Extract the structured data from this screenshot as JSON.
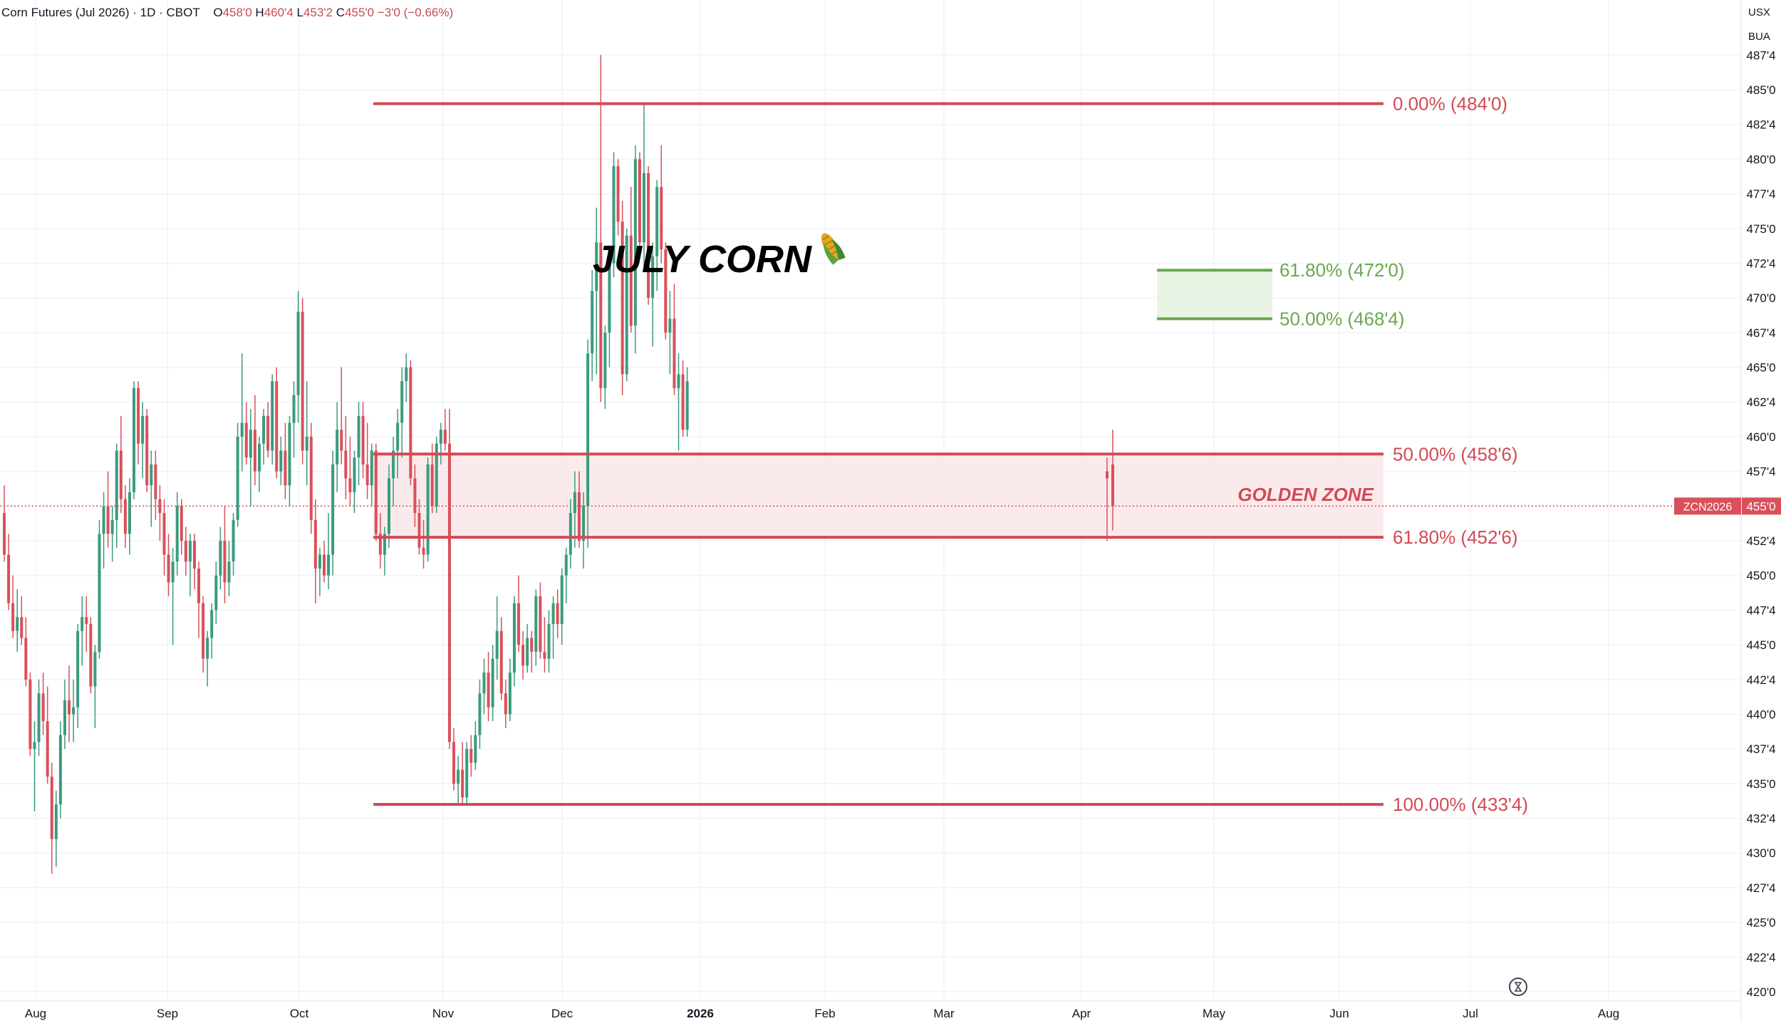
{
  "header": {
    "symbol": "Corn Futures (Jul 2026)",
    "interval": "1D",
    "exchange": "CBOT",
    "open_label": "O",
    "open": "458'0",
    "high_label": "H",
    "high": "460'4",
    "low_label": "L",
    "low": "453'2",
    "close_label": "C",
    "close": "455'0",
    "change": "−3'0 (−0.66%)"
  },
  "units": {
    "currency": "USX",
    "unit": "BUA"
  },
  "colors": {
    "up": "#3a9b7e",
    "down": "#d9505a",
    "fib": "#d24a55",
    "fib_green": "#6aa84f",
    "zone_fill": "#f9e3e5",
    "green_zone_fill": "#e8f3e2"
  },
  "chart_data": {
    "type": "candlestick",
    "title": "JULY CORN",
    "title_icon": "corn-icon",
    "symbol_tag": "ZCN2026",
    "last_price": "455'0",
    "last_price_value": 455.0,
    "ylim": [
      419.5,
      488.5
    ],
    "y_ticks": [
      "420'0",
      "422'4",
      "425'0",
      "427'4",
      "430'0",
      "432'4",
      "435'0",
      "437'4",
      "440'0",
      "442'4",
      "445'0",
      "447'4",
      "450'0",
      "452'4",
      "455'0",
      "457'4",
      "460'0",
      "462'4",
      "465'0",
      "467'4",
      "470'0",
      "472'4",
      "475'0",
      "477'4",
      "480'0",
      "482'4",
      "485'0",
      "487'4"
    ],
    "x_ticks": [
      "Aug",
      "Sep",
      "Oct",
      "Nov",
      "Dec",
      "2026",
      "Feb",
      "Mar",
      "Apr",
      "May",
      "Jun",
      "Jul",
      "Aug"
    ],
    "grid": true,
    "fib_levels": [
      {
        "label": "0.00% (484'0)",
        "value": 484.0
      },
      {
        "label": "50.00% (458'6)",
        "value": 458.75
      },
      {
        "label": "61.80% (452'6)",
        "value": 452.75
      },
      {
        "label": "100.00% (433'4)",
        "value": 433.5
      }
    ],
    "golden_zone": {
      "label": "GOLDEN ZONE",
      "top": 458.75,
      "bottom": 452.75
    },
    "target_zone": [
      {
        "label": "61.80% (472'0)",
        "value": 472.0
      },
      {
        "label": "50.00% (468'4)",
        "value": 468.5
      }
    ],
    "candles": [
      {
        "o": 454.5,
        "h": 456.5,
        "l": 451.0,
        "c": 451.5
      },
      {
        "o": 451.5,
        "h": 453.0,
        "l": 447.5,
        "c": 448.0
      },
      {
        "o": 448.0,
        "h": 450.0,
        "l": 445.5,
        "c": 446.0
      },
      {
        "o": 446.0,
        "h": 449.0,
        "l": 444.5,
        "c": 447.0
      },
      {
        "o": 447.0,
        "h": 448.5,
        "l": 445.0,
        "c": 445.5
      },
      {
        "o": 445.5,
        "h": 447.0,
        "l": 442.0,
        "c": 442.5
      },
      {
        "o": 442.5,
        "h": 443.0,
        "l": 437.0,
        "c": 437.5
      },
      {
        "o": 437.5,
        "h": 439.5,
        "l": 433.0,
        "c": 438.0
      },
      {
        "o": 438.0,
        "h": 442.5,
        "l": 437.0,
        "c": 441.5
      },
      {
        "o": 441.5,
        "h": 443.0,
        "l": 438.5,
        "c": 439.5
      },
      {
        "o": 439.5,
        "h": 442.0,
        "l": 435.0,
        "c": 435.5
      },
      {
        "o": 435.5,
        "h": 436.5,
        "l": 428.5,
        "c": 431.0
      },
      {
        "o": 431.0,
        "h": 434.5,
        "l": 429.0,
        "c": 433.5
      },
      {
        "o": 433.5,
        "h": 439.5,
        "l": 432.5,
        "c": 438.5
      },
      {
        "o": 438.5,
        "h": 442.5,
        "l": 437.5,
        "c": 441.0
      },
      {
        "o": 441.0,
        "h": 443.5,
        "l": 438.0,
        "c": 440.0
      },
      {
        "o": 440.0,
        "h": 442.5,
        "l": 438.0,
        "c": 440.5
      },
      {
        "o": 440.5,
        "h": 446.5,
        "l": 439.0,
        "c": 446.0
      },
      {
        "o": 446.0,
        "h": 448.5,
        "l": 443.5,
        "c": 447.0
      },
      {
        "o": 447.0,
        "h": 448.5,
        "l": 444.5,
        "c": 446.5
      },
      {
        "o": 446.5,
        "h": 447.0,
        "l": 441.5,
        "c": 442.0
      },
      {
        "o": 442.0,
        "h": 445.0,
        "l": 439.0,
        "c": 444.5
      },
      {
        "o": 444.5,
        "h": 454.0,
        "l": 444.0,
        "c": 453.0
      },
      {
        "o": 453.0,
        "h": 456.0,
        "l": 450.5,
        "c": 455.0
      },
      {
        "o": 455.0,
        "h": 457.5,
        "l": 452.0,
        "c": 453.0
      },
      {
        "o": 453.0,
        "h": 455.0,
        "l": 451.0,
        "c": 454.0
      },
      {
        "o": 454.0,
        "h": 459.5,
        "l": 452.0,
        "c": 459.0
      },
      {
        "o": 459.0,
        "h": 461.5,
        "l": 454.5,
        "c": 455.5
      },
      {
        "o": 455.5,
        "h": 456.5,
        "l": 452.0,
        "c": 453.0
      },
      {
        "o": 453.0,
        "h": 457.0,
        "l": 451.5,
        "c": 456.0
      },
      {
        "o": 456.0,
        "h": 464.0,
        "l": 455.5,
        "c": 463.5
      },
      {
        "o": 463.5,
        "h": 464.0,
        "l": 458.0,
        "c": 459.5
      },
      {
        "o": 459.5,
        "h": 462.5,
        "l": 457.0,
        "c": 461.5
      },
      {
        "o": 461.5,
        "h": 462.0,
        "l": 456.0,
        "c": 456.5
      },
      {
        "o": 456.5,
        "h": 459.0,
        "l": 453.5,
        "c": 458.0
      },
      {
        "o": 458.0,
        "h": 459.0,
        "l": 454.0,
        "c": 455.5
      },
      {
        "o": 455.5,
        "h": 456.5,
        "l": 452.5,
        "c": 454.5
      },
      {
        "o": 454.5,
        "h": 455.5,
        "l": 450.0,
        "c": 451.5
      },
      {
        "o": 451.5,
        "h": 453.0,
        "l": 448.5,
        "c": 449.5
      },
      {
        "o": 449.5,
        "h": 452.0,
        "l": 445.0,
        "c": 451.0
      },
      {
        "o": 451.0,
        "h": 456.0,
        "l": 450.0,
        "c": 455.0
      },
      {
        "o": 455.0,
        "h": 455.5,
        "l": 451.5,
        "c": 452.5
      },
      {
        "o": 452.5,
        "h": 453.5,
        "l": 450.0,
        "c": 451.0
      },
      {
        "o": 451.0,
        "h": 453.0,
        "l": 448.5,
        "c": 452.5
      },
      {
        "o": 452.5,
        "h": 453.0,
        "l": 449.0,
        "c": 450.5
      },
      {
        "o": 450.5,
        "h": 451.0,
        "l": 445.5,
        "c": 448.0
      },
      {
        "o": 448.0,
        "h": 448.5,
        "l": 443.0,
        "c": 444.0
      },
      {
        "o": 444.0,
        "h": 446.0,
        "l": 442.0,
        "c": 445.5
      },
      {
        "o": 445.5,
        "h": 448.0,
        "l": 444.0,
        "c": 447.5
      },
      {
        "o": 447.5,
        "h": 451.0,
        "l": 446.5,
        "c": 450.0
      },
      {
        "o": 450.0,
        "h": 453.5,
        "l": 449.0,
        "c": 452.5
      },
      {
        "o": 452.5,
        "h": 455.0,
        "l": 448.0,
        "c": 449.5
      },
      {
        "o": 449.5,
        "h": 452.5,
        "l": 448.5,
        "c": 451.0
      },
      {
        "o": 451.0,
        "h": 454.5,
        "l": 450.0,
        "c": 454.0
      },
      {
        "o": 454.0,
        "h": 461.0,
        "l": 453.5,
        "c": 460.0
      },
      {
        "o": 460.0,
        "h": 466.0,
        "l": 457.5,
        "c": 461.0
      },
      {
        "o": 461.0,
        "h": 462.5,
        "l": 458.0,
        "c": 458.5
      },
      {
        "o": 458.5,
        "h": 462.0,
        "l": 455.0,
        "c": 460.5
      },
      {
        "o": 460.5,
        "h": 463.0,
        "l": 456.5,
        "c": 457.5
      },
      {
        "o": 457.5,
        "h": 460.0,
        "l": 456.0,
        "c": 459.5
      },
      {
        "o": 459.5,
        "h": 462.0,
        "l": 458.0,
        "c": 461.5
      },
      {
        "o": 461.5,
        "h": 462.5,
        "l": 458.5,
        "c": 459.0
      },
      {
        "o": 459.0,
        "h": 464.5,
        "l": 458.0,
        "c": 464.0
      },
      {
        "o": 464.0,
        "h": 465.0,
        "l": 457.0,
        "c": 457.5
      },
      {
        "o": 457.5,
        "h": 460.0,
        "l": 456.5,
        "c": 459.0
      },
      {
        "o": 459.0,
        "h": 461.0,
        "l": 455.5,
        "c": 456.5
      },
      {
        "o": 456.5,
        "h": 461.5,
        "l": 455.0,
        "c": 461.0
      },
      {
        "o": 461.0,
        "h": 464.0,
        "l": 458.5,
        "c": 463.0
      },
      {
        "o": 463.0,
        "h": 470.5,
        "l": 461.0,
        "c": 469.0
      },
      {
        "o": 469.0,
        "h": 470.0,
        "l": 458.0,
        "c": 459.0
      },
      {
        "o": 459.0,
        "h": 464.0,
        "l": 456.5,
        "c": 460.0
      },
      {
        "o": 460.0,
        "h": 461.0,
        "l": 453.0,
        "c": 454.0
      },
      {
        "o": 454.0,
        "h": 455.5,
        "l": 448.0,
        "c": 450.5
      },
      {
        "o": 450.5,
        "h": 452.0,
        "l": 448.5,
        "c": 451.5
      },
      {
        "o": 451.5,
        "h": 452.5,
        "l": 449.5,
        "c": 450.0
      },
      {
        "o": 450.0,
        "h": 454.5,
        "l": 449.0,
        "c": 451.5
      },
      {
        "o": 451.5,
        "h": 459.0,
        "l": 450.0,
        "c": 458.0
      },
      {
        "o": 458.0,
        "h": 462.5,
        "l": 456.0,
        "c": 460.5
      },
      {
        "o": 460.5,
        "h": 465.0,
        "l": 458.0,
        "c": 459.0
      },
      {
        "o": 459.0,
        "h": 461.5,
        "l": 455.5,
        "c": 457.0
      },
      {
        "o": 457.0,
        "h": 460.0,
        "l": 455.0,
        "c": 456.0
      },
      {
        "o": 456.0,
        "h": 459.0,
        "l": 454.5,
        "c": 458.5
      },
      {
        "o": 458.5,
        "h": 462.5,
        "l": 456.5,
        "c": 461.5
      },
      {
        "o": 461.5,
        "h": 462.5,
        "l": 457.0,
        "c": 458.0
      },
      {
        "o": 458.0,
        "h": 461.0,
        "l": 455.5,
        "c": 456.5
      },
      {
        "o": 456.5,
        "h": 459.5,
        "l": 455.0,
        "c": 459.0
      },
      {
        "o": 459.0,
        "h": 459.5,
        "l": 452.5,
        "c": 453.0
      },
      {
        "o": 453.0,
        "h": 454.5,
        "l": 450.5,
        "c": 451.5
      },
      {
        "o": 451.5,
        "h": 453.5,
        "l": 450.0,
        "c": 453.0
      },
      {
        "o": 453.0,
        "h": 458.0,
        "l": 452.0,
        "c": 457.0
      },
      {
        "o": 457.0,
        "h": 460.0,
        "l": 455.0,
        "c": 459.0
      },
      {
        "o": 459.0,
        "h": 462.0,
        "l": 457.0,
        "c": 461.0
      },
      {
        "o": 461.0,
        "h": 465.0,
        "l": 458.5,
        "c": 464.0
      },
      {
        "o": 464.0,
        "h": 466.0,
        "l": 462.5,
        "c": 465.0
      },
      {
        "o": 465.0,
        "h": 465.5,
        "l": 456.5,
        "c": 457.0
      },
      {
        "o": 457.0,
        "h": 458.0,
        "l": 453.5,
        "c": 454.5
      },
      {
        "o": 454.5,
        "h": 455.5,
        "l": 451.5,
        "c": 452.0
      },
      {
        "o": 452.0,
        "h": 454.0,
        "l": 450.5,
        "c": 451.5
      },
      {
        "o": 451.5,
        "h": 458.5,
        "l": 451.0,
        "c": 458.0
      },
      {
        "o": 458.0,
        "h": 459.5,
        "l": 454.5,
        "c": 455.0
      },
      {
        "o": 455.0,
        "h": 460.0,
        "l": 454.5,
        "c": 459.5
      },
      {
        "o": 459.5,
        "h": 461.0,
        "l": 458.0,
        "c": 460.5
      },
      {
        "o": 460.5,
        "h": 462.0,
        "l": 459.0,
        "c": 459.5
      },
      {
        "o": 459.5,
        "h": 462.0,
        "l": 437.5,
        "c": 438.0
      },
      {
        "o": 438.0,
        "h": 439.0,
        "l": 434.5,
        "c": 435.0
      },
      {
        "o": 435.0,
        "h": 437.0,
        "l": 433.5,
        "c": 436.0
      },
      {
        "o": 436.0,
        "h": 438.0,
        "l": 433.5,
        "c": 434.0
      },
      {
        "o": 434.0,
        "h": 438.0,
        "l": 433.5,
        "c": 437.5
      },
      {
        "o": 437.5,
        "h": 438.5,
        "l": 435.5,
        "c": 436.5
      },
      {
        "o": 436.5,
        "h": 439.5,
        "l": 436.0,
        "c": 438.5
      },
      {
        "o": 438.5,
        "h": 442.5,
        "l": 437.5,
        "c": 441.5
      },
      {
        "o": 441.5,
        "h": 444.0,
        "l": 440.0,
        "c": 443.0
      },
      {
        "o": 443.0,
        "h": 444.5,
        "l": 439.5,
        "c": 440.5
      },
      {
        "o": 440.5,
        "h": 445.0,
        "l": 439.5,
        "c": 444.0
      },
      {
        "o": 444.0,
        "h": 448.5,
        "l": 442.5,
        "c": 446.0
      },
      {
        "o": 446.0,
        "h": 447.0,
        "l": 441.0,
        "c": 441.5
      },
      {
        "o": 441.5,
        "h": 442.5,
        "l": 439.0,
        "c": 440.0
      },
      {
        "o": 440.0,
        "h": 444.0,
        "l": 439.5,
        "c": 443.0
      },
      {
        "o": 443.0,
        "h": 448.5,
        "l": 442.0,
        "c": 448.0
      },
      {
        "o": 448.0,
        "h": 450.0,
        "l": 444.5,
        "c": 445.0
      },
      {
        "o": 445.0,
        "h": 446.0,
        "l": 442.5,
        "c": 443.5
      },
      {
        "o": 443.5,
        "h": 446.5,
        "l": 443.0,
        "c": 445.5
      },
      {
        "o": 445.5,
        "h": 446.0,
        "l": 443.0,
        "c": 444.5
      },
      {
        "o": 444.5,
        "h": 449.0,
        "l": 443.5,
        "c": 448.5
      },
      {
        "o": 448.5,
        "h": 449.5,
        "l": 444.0,
        "c": 444.5
      },
      {
        "o": 444.5,
        "h": 447.0,
        "l": 443.0,
        "c": 444.0
      },
      {
        "o": 444.0,
        "h": 447.5,
        "l": 443.0,
        "c": 446.5
      },
      {
        "o": 446.5,
        "h": 448.5,
        "l": 444.0,
        "c": 448.0
      },
      {
        "o": 448.0,
        "h": 449.0,
        "l": 445.5,
        "c": 446.5
      },
      {
        "o": 446.5,
        "h": 450.5,
        "l": 445.0,
        "c": 450.0
      },
      {
        "o": 450.0,
        "h": 452.0,
        "l": 448.0,
        "c": 451.5
      },
      {
        "o": 451.5,
        "h": 455.5,
        "l": 450.5,
        "c": 454.5
      },
      {
        "o": 454.5,
        "h": 457.5,
        "l": 452.0,
        "c": 456.0
      },
      {
        "o": 456.0,
        "h": 457.5,
        "l": 452.0,
        "c": 452.5
      },
      {
        "o": 452.5,
        "h": 456.0,
        "l": 450.5,
        "c": 455.0
      },
      {
        "o": 455.0,
        "h": 467.0,
        "l": 452.0,
        "c": 466.0
      },
      {
        "o": 466.0,
        "h": 472.0,
        "l": 464.0,
        "c": 470.5
      },
      {
        "o": 470.5,
        "h": 476.5,
        "l": 464.5,
        "c": 474.0
      },
      {
        "o": 474.0,
        "h": 487.5,
        "l": 462.5,
        "c": 463.5
      },
      {
        "o": 463.5,
        "h": 468.0,
        "l": 462.0,
        "c": 467.5
      },
      {
        "o": 467.5,
        "h": 473.5,
        "l": 465.0,
        "c": 472.5
      },
      {
        "o": 472.5,
        "h": 480.5,
        "l": 471.5,
        "c": 479.5
      },
      {
        "o": 479.5,
        "h": 480.0,
        "l": 474.5,
        "c": 475.5
      },
      {
        "o": 475.5,
        "h": 477.0,
        "l": 463.0,
        "c": 464.5
      },
      {
        "o": 464.5,
        "h": 475.0,
        "l": 464.0,
        "c": 474.5
      },
      {
        "o": 474.5,
        "h": 478.0,
        "l": 467.5,
        "c": 468.0
      },
      {
        "o": 468.0,
        "h": 481.0,
        "l": 466.0,
        "c": 480.0
      },
      {
        "o": 480.0,
        "h": 480.5,
        "l": 473.5,
        "c": 474.0
      },
      {
        "o": 474.0,
        "h": 484.0,
        "l": 472.0,
        "c": 479.0
      },
      {
        "o": 479.0,
        "h": 479.5,
        "l": 469.5,
        "c": 470.0
      },
      {
        "o": 470.0,
        "h": 474.0,
        "l": 466.5,
        "c": 473.0
      },
      {
        "o": 473.0,
        "h": 478.5,
        "l": 470.5,
        "c": 478.0
      },
      {
        "o": 478.0,
        "h": 481.0,
        "l": 472.5,
        "c": 473.5
      },
      {
        "o": 473.5,
        "h": 474.0,
        "l": 467.0,
        "c": 467.5
      },
      {
        "o": 467.5,
        "h": 470.5,
        "l": 464.5,
        "c": 468.5
      },
      {
        "o": 468.5,
        "h": 471.0,
        "l": 463.0,
        "c": 463.5
      },
      {
        "o": 463.5,
        "h": 466.0,
        "l": 459.0,
        "c": 464.5
      },
      {
        "o": 464.5,
        "h": 465.5,
        "l": 460.0,
        "c": 460.5
      },
      {
        "o": 460.5,
        "h": 465.0,
        "l": 460.0,
        "c": 464.0
      }
    ],
    "last_candles": [
      {
        "o": 457.5,
        "h": 458.5,
        "l": 452.5,
        "c": 457.0
      },
      {
        "o": 458.0,
        "h": 460.5,
        "l": 453.25,
        "c": 455.0
      }
    ]
  }
}
